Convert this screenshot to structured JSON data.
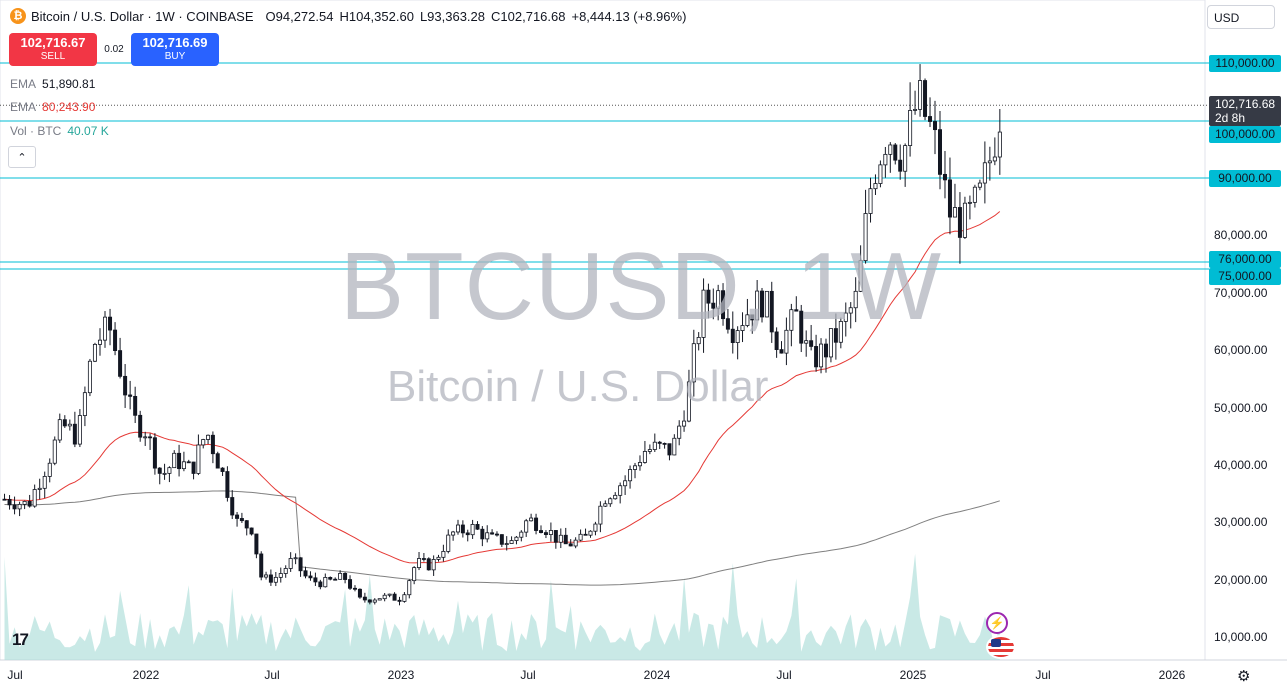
{
  "header": {
    "logo_glyph": "₿",
    "symbol_title": "Bitcoin / U.S. Dollar · 1W · COINBASE",
    "open_label": "O",
    "open": "94,272.54",
    "high_label": "H",
    "high": "104,352.60",
    "low_label": "L",
    "low": "93,363.28",
    "close_label": "C",
    "close": "102,716.68",
    "change": "+8,444.13 (+8.96%)"
  },
  "trade": {
    "sell_price": "102,716.67",
    "sell_label": "SELL",
    "spread": "0.02",
    "buy_price": "102,716.69",
    "buy_label": "BUY"
  },
  "indicators": {
    "ema1_label": "EMA",
    "ema1_value": "51,890.81",
    "ema2_label": "EMA",
    "ema2_value": "80,243.90",
    "vol_label": "Vol · BTC",
    "vol_value": "40.07 K",
    "collapse_glyph": "⌃"
  },
  "currency": "USD",
  "current_price": {
    "value": "102,716.68",
    "countdown": "2d 8h"
  },
  "levels": [
    "110,000.00",
    "100,000.00",
    "90,000.00",
    "76,000.00",
    "75,000.00"
  ],
  "watermark": {
    "symbol": "BTCUSD, 1W",
    "name": "Bitcoin / U.S. Dollar"
  },
  "logo_text": "17",
  "settings_icon": "gear-icon",
  "colors": {
    "up": "#131722",
    "down": "#131722",
    "level_line": "#00bcd4",
    "ema_fast": "#e53935",
    "ema_slow": "#808080",
    "vol_up": "#b2dfdb",
    "vol_down": "#f8bbd0",
    "sell": "#f23645",
    "buy": "#2962ff"
  },
  "chart_data": {
    "type": "candlestick",
    "title": "Bitcoin / U.S. Dollar · 1W · COINBASE",
    "y_axis": {
      "ticks": [
        "10,000.00",
        "20,000.00",
        "30,000.00",
        "40,000.00",
        "50,000.00",
        "60,000.00",
        "70,000.00",
        "80,000.00"
      ],
      "ylim": [
        5000,
        121000
      ],
      "scale": "linear"
    },
    "x_axis": {
      "ticks": [
        "Jul",
        "2022",
        "Jul",
        "2023",
        "Jul",
        "2024",
        "Jul",
        "2025",
        "Jul",
        "2026"
      ]
    },
    "horizontal_levels": [
      110000,
      100000,
      90000,
      76000,
      75000
    ],
    "price_path": [
      [
        2021.46,
        34000
      ],
      [
        2021.55,
        33000
      ],
      [
        2021.62,
        40000
      ],
      [
        2021.68,
        47000
      ],
      [
        2021.74,
        45000
      ],
      [
        2021.8,
        61000
      ],
      [
        2021.86,
        64000
      ],
      [
        2021.9,
        57000
      ],
      [
        2021.95,
        48000
      ],
      [
        2022.0,
        46000
      ],
      [
        2022.06,
        38000
      ],
      [
        2022.12,
        41000
      ],
      [
        2022.18,
        39000
      ],
      [
        2022.24,
        46000
      ],
      [
        2022.3,
        39000
      ],
      [
        2022.36,
        30000
      ],
      [
        2022.42,
        29000
      ],
      [
        2022.46,
        20000
      ],
      [
        2022.52,
        20500
      ],
      [
        2022.58,
        23500
      ],
      [
        2022.64,
        20000
      ],
      [
        2022.7,
        19500
      ],
      [
        2022.78,
        20500
      ],
      [
        2022.84,
        16500
      ],
      [
        2022.92,
        17000
      ],
      [
        2023.0,
        16800
      ],
      [
        2023.06,
        23000
      ],
      [
        2023.12,
        22500
      ],
      [
        2023.2,
        28000
      ],
      [
        2023.28,
        29000
      ],
      [
        2023.36,
        27000
      ],
      [
        2023.44,
        26500
      ],
      [
        2023.5,
        30500
      ],
      [
        2023.56,
        29300
      ],
      [
        2023.64,
        26000
      ],
      [
        2023.72,
        27000
      ],
      [
        2023.8,
        34500
      ],
      [
        2023.88,
        37500
      ],
      [
        2023.95,
        42500
      ],
      [
        2024.0,
        43000
      ],
      [
        2024.06,
        42500
      ],
      [
        2024.12,
        52000
      ],
      [
        2024.18,
        68000
      ],
      [
        2024.24,
        70000
      ],
      [
        2024.3,
        64000
      ],
      [
        2024.36,
        67000
      ],
      [
        2024.42,
        69000
      ],
      [
        2024.48,
        61000
      ],
      [
        2024.55,
        66000
      ],
      [
        2024.6,
        58000
      ],
      [
        2024.66,
        60000
      ],
      [
        2024.72,
        63500
      ],
      [
        2024.78,
        69000
      ],
      [
        2024.84,
        90000
      ],
      [
        2024.9,
        98000
      ],
      [
        2024.96,
        94000
      ],
      [
        2025.02,
        104000
      ],
      [
        2025.08,
        97000
      ],
      [
        2025.14,
        84000
      ],
      [
        2025.2,
        82000
      ],
      [
        2025.26,
        87000
      ],
      [
        2025.3,
        94000
      ],
      [
        2025.34,
        102716.68
      ]
    ],
    "series": [
      {
        "name": "EMA",
        "last": 51890.81
      },
      {
        "name": "EMA",
        "last": 80243.9
      }
    ]
  }
}
